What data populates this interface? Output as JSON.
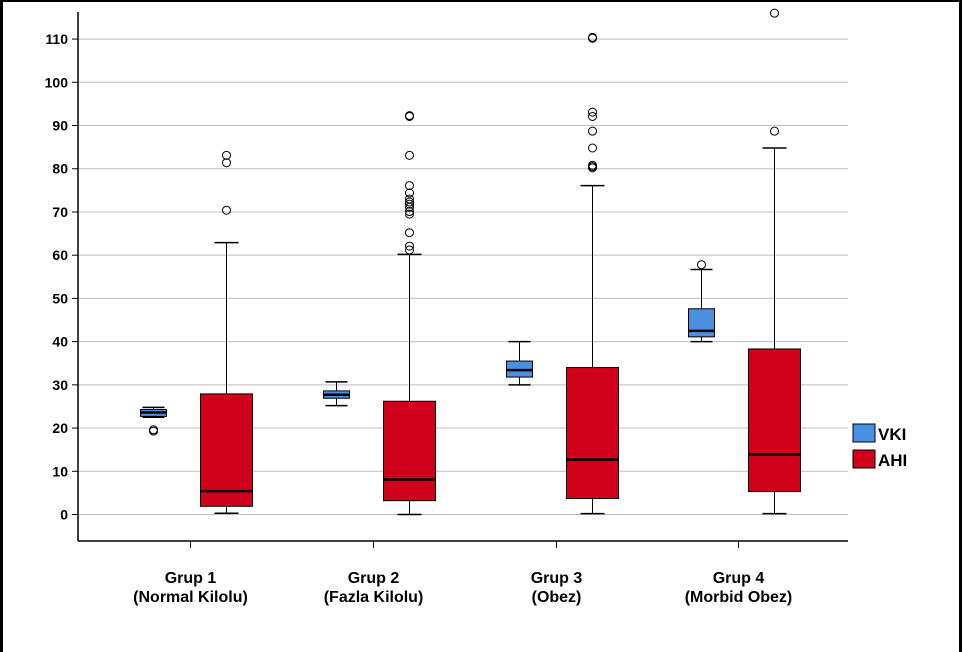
{
  "chart_data": {
    "type": "boxplot",
    "ylim": [
      -6,
      115
    ],
    "yticks": [
      0,
      10,
      20,
      30,
      40,
      50,
      60,
      70,
      80,
      90,
      100,
      110
    ],
    "grid": true,
    "legend_position": "right",
    "categories": [
      {
        "line1": "Grup 1",
        "line2": "(Normal Kilolu)"
      },
      {
        "line1": "Grup 2",
        "line2": "(Fazla Kilolu)"
      },
      {
        "line1": "Grup 3",
        "line2": "(Obez)"
      },
      {
        "line1": "Grup 4",
        "line2": "(Morbid Obez)"
      }
    ],
    "series": [
      {
        "name": "VKI",
        "color": "#4a90e2",
        "boxes": [
          {
            "whisker_low": 22.5,
            "q1": 22.7,
            "median": 23.6,
            "q3": 24.3,
            "whisker_high": 24.8,
            "outliers": [
              19.3,
              19.6
            ]
          },
          {
            "whisker_low": 25.2,
            "q1": 26.9,
            "median": 27.7,
            "q3": 28.6,
            "whisker_high": 30.7,
            "outliers": []
          },
          {
            "whisker_low": 30.0,
            "q1": 31.8,
            "median": 33.4,
            "q3": 35.5,
            "whisker_high": 40.0,
            "outliers": []
          },
          {
            "whisker_low": 40.0,
            "q1": 41.1,
            "median": 42.5,
            "q3": 47.6,
            "whisker_high": 56.7,
            "outliers": [
              57.8
            ]
          }
        ]
      },
      {
        "name": "AHI",
        "color": "#d0021b",
        "boxes": [
          {
            "whisker_low": 0.3,
            "q1": 1.9,
            "median": 5.4,
            "q3": 27.9,
            "whisker_high": 62.9,
            "outliers": [
              70.4,
              81.4,
              83.1
            ]
          },
          {
            "whisker_low": 0.0,
            "q1": 3.2,
            "median": 8.1,
            "q3": 26.2,
            "whisker_high": 60.2,
            "outliers": [
              61.2,
              62.1,
              65.2,
              69.5,
              70.1,
              71.1,
              71.8,
              72.3,
              73.0,
              74.4,
              76.1,
              83.1,
              92.1,
              92.3
            ]
          },
          {
            "whisker_low": 0.2,
            "q1": 3.7,
            "median": 12.7,
            "q3": 34.0,
            "whisker_high": 76.1,
            "outliers": [
              80.2,
              80.5,
              80.8,
              84.8,
              88.7,
              92.1,
              93.1,
              110.2,
              110.4
            ]
          },
          {
            "whisker_low": 0.2,
            "q1": 5.3,
            "median": 13.9,
            "q3": 38.3,
            "whisker_high": 84.8,
            "outliers": [
              88.7,
              116.0
            ]
          }
        ]
      }
    ]
  }
}
